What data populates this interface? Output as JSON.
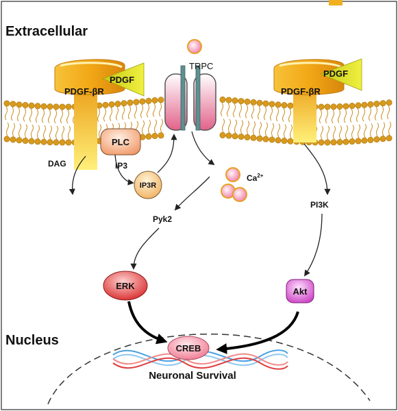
{
  "regions": {
    "extracellular": "Extracellular",
    "nucleus": "Nucleus"
  },
  "receptors": {
    "left_receptor": "PDGF-βR",
    "left_ligand": "PDGF",
    "right_receptor": "PDGF-βR",
    "right_ligand": "PDGF"
  },
  "channel": {
    "label": "TRPC"
  },
  "molecules": {
    "plc": "PLC",
    "ip3": "IP3",
    "ip3r": "IP3R",
    "dag": "DAG",
    "calcium": "Ca",
    "calcium_charge": "2+",
    "pyk2": "Pyk2",
    "pi3k": "PI3K",
    "erk": "ERK",
    "akt": "Akt",
    "creb": "CREB"
  },
  "outcome": {
    "label": "Neuronal Survival"
  },
  "colors": {
    "membrane_head": "#d89a1c",
    "receptor": "#f2a816",
    "ligand": "#e0e02a",
    "channel": "#e2628a",
    "calcium": "#f08ab0",
    "erk": "#e03a3a",
    "akt": "#d85ad0",
    "dna_red": "#e04040",
    "dna_blue": "#4aa0e0"
  }
}
